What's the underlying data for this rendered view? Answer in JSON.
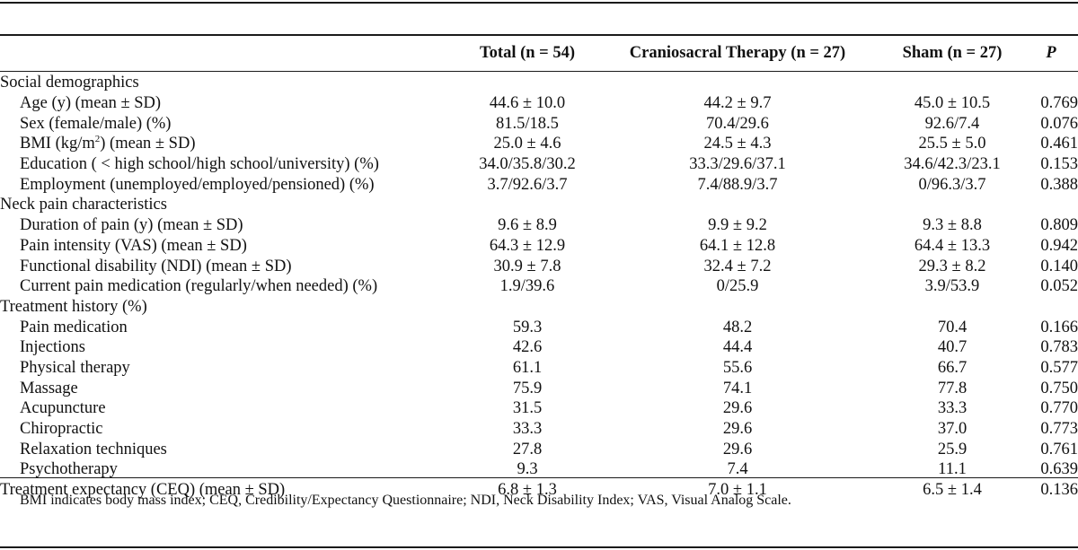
{
  "header": {
    "label": "",
    "total": "Total (n = 54)",
    "cst": "Craniosacral Therapy (n = 27)",
    "sham": "Sham (n = 27)",
    "p": "P"
  },
  "rows": [
    {
      "label": "Social demographics",
      "section": true,
      "total": "",
      "cst": "",
      "sham": "",
      "p": ""
    },
    {
      "label": "Age (y) (mean ± SD)",
      "section": false,
      "total": "44.6 ± 10.0",
      "cst": "44.2 ± 9.7",
      "sham": "45.0 ± 10.5",
      "p": "0.769"
    },
    {
      "label": "Sex (female/male) (%)",
      "section": false,
      "total": "81.5/18.5",
      "cst": "70.4/29.6",
      "sham": "92.6/7.4",
      "p": "0.076"
    },
    {
      "label": "BMI (kg/m2) (mean ± SD)",
      "section": false,
      "total": "25.0 ± 4.6",
      "cst": "24.5 ± 4.3",
      "sham": "25.5 ± 5.0",
      "p": "0.461"
    },
    {
      "label": "Education ( < high school/high school/university) (%)",
      "section": false,
      "total": "34.0/35.8/30.2",
      "cst": "33.3/29.6/37.1",
      "sham": "34.6/42.3/23.1",
      "p": "0.153"
    },
    {
      "label": "Employment (unemployed/employed/pensioned) (%)",
      "section": false,
      "total": "3.7/92.6/3.7",
      "cst": "7.4/88.9/3.7",
      "sham": "0/96.3/3.7",
      "p": "0.388"
    },
    {
      "label": "Neck pain characteristics",
      "section": true,
      "total": "",
      "cst": "",
      "sham": "",
      "p": ""
    },
    {
      "label": "Duration of pain (y) (mean ± SD)",
      "section": false,
      "total": "9.6 ± 8.9",
      "cst": "9.9 ± 9.2",
      "sham": "9.3 ± 8.8",
      "p": "0.809"
    },
    {
      "label": "Pain intensity (VAS) (mean ± SD)",
      "section": false,
      "total": "64.3 ± 12.9",
      "cst": "64.1 ± 12.8",
      "sham": "64.4 ± 13.3",
      "p": "0.942"
    },
    {
      "label": "Functional disability (NDI) (mean ± SD)",
      "section": false,
      "total": "30.9 ± 7.8",
      "cst": "32.4 ± 7.2",
      "sham": "29.3 ± 8.2",
      "p": "0.140"
    },
    {
      "label": "Current pain medication (regularly/when needed) (%)",
      "section": false,
      "total": "1.9/39.6",
      "cst": "0/25.9",
      "sham": "3.9/53.9",
      "p": "0.052"
    },
    {
      "label": "Treatment history (%)",
      "section": true,
      "total": "",
      "cst": "",
      "sham": "",
      "p": ""
    },
    {
      "label": "Pain medication",
      "section": false,
      "total": "59.3",
      "cst": "48.2",
      "sham": "70.4",
      "p": "0.166"
    },
    {
      "label": "Injections",
      "section": false,
      "total": "42.6",
      "cst": "44.4",
      "sham": "40.7",
      "p": "0.783"
    },
    {
      "label": "Physical therapy",
      "section": false,
      "total": "61.1",
      "cst": "55.6",
      "sham": "66.7",
      "p": "0.577"
    },
    {
      "label": "Massage",
      "section": false,
      "total": "75.9",
      "cst": "74.1",
      "sham": "77.8",
      "p": "0.750"
    },
    {
      "label": "Acupuncture",
      "section": false,
      "total": "31.5",
      "cst": "29.6",
      "sham": "33.3",
      "p": "0.770"
    },
    {
      "label": "Chiropractic",
      "section": false,
      "total": "33.3",
      "cst": "29.6",
      "sham": "37.0",
      "p": "0.773"
    },
    {
      "label": "Relaxation techniques",
      "section": false,
      "total": "27.8",
      "cst": "29.6",
      "sham": "25.9",
      "p": "0.761"
    },
    {
      "label": "Psychotherapy",
      "section": false,
      "total": "9.3",
      "cst": "7.4",
      "sham": "11.1",
      "p": "0.639"
    },
    {
      "label": "Treatment expectancy (CEQ) (mean ± SD)",
      "section": true,
      "total": "6.8 ± 1.3",
      "cst": "7.0 ± 1.1",
      "sham": "6.5 ± 1.4",
      "p": "0.136"
    }
  ],
  "footnote": "BMI indicates body mass index; CEQ, Credibility/Expectancy Questionnaire; NDI, Neck Disability Index; VAS, Visual Analog Scale."
}
